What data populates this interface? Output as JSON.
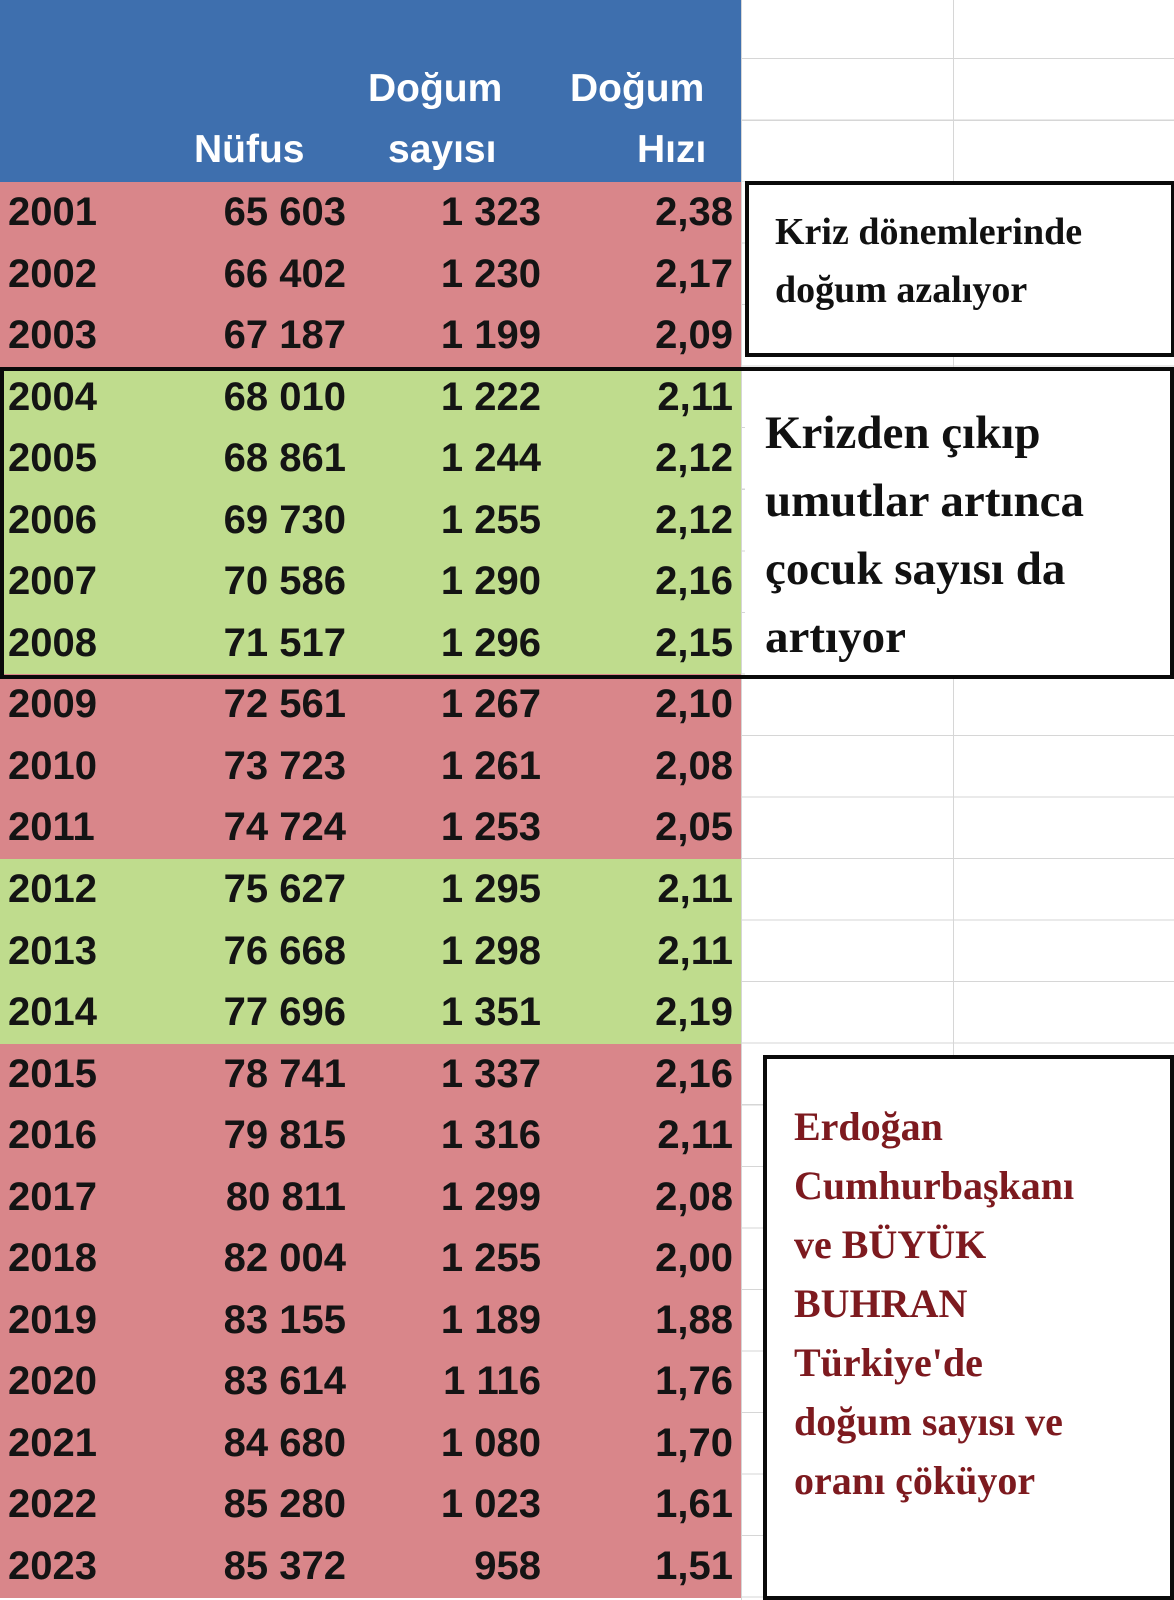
{
  "header": {
    "population": "Nüfus",
    "births_line1": "Doğum",
    "births_line2": "sayısı",
    "rate_line1": "Doğum",
    "rate_line2": "Hızı"
  },
  "colors": {
    "header": "#3e6fae",
    "decline_row": "#d9868a",
    "growth_row": "#bfdc8d",
    "note_red": "#7d1a1f"
  },
  "rows": [
    {
      "year": "2001",
      "population": "65 603",
      "births": "1 323",
      "rate": "2,38",
      "trend": "decline"
    },
    {
      "year": "2002",
      "population": "66 402",
      "births": "1 230",
      "rate": "2,17",
      "trend": "decline"
    },
    {
      "year": "2003",
      "population": "67 187",
      "births": "1 199",
      "rate": "2,09",
      "trend": "decline"
    },
    {
      "year": "2004",
      "population": "68 010",
      "births": "1 222",
      "rate": "2,11",
      "trend": "growth"
    },
    {
      "year": "2005",
      "population": "68 861",
      "births": "1 244",
      "rate": "2,12",
      "trend": "growth"
    },
    {
      "year": "2006",
      "population": "69 730",
      "births": "1 255",
      "rate": "2,12",
      "trend": "growth"
    },
    {
      "year": "2007",
      "population": "70 586",
      "births": "1 290",
      "rate": "2,16",
      "trend": "growth"
    },
    {
      "year": "2008",
      "population": "71 517",
      "births": "1 296",
      "rate": "2,15",
      "trend": "growth"
    },
    {
      "year": "2009",
      "population": "72 561",
      "births": "1 267",
      "rate": "2,10",
      "trend": "decline"
    },
    {
      "year": "2010",
      "population": "73 723",
      "births": "1 261",
      "rate": "2,08",
      "trend": "decline"
    },
    {
      "year": "2011",
      "population": "74 724",
      "births": "1 253",
      "rate": "2,05",
      "trend": "decline"
    },
    {
      "year": "2012",
      "population": "75 627",
      "births": "1 295",
      "rate": "2,11",
      "trend": "growth"
    },
    {
      "year": "2013",
      "population": "76 668",
      "births": "1 298",
      "rate": "2,11",
      "trend": "growth"
    },
    {
      "year": "2014",
      "population": "77 696",
      "births": "1 351",
      "rate": "2,19",
      "trend": "growth"
    },
    {
      "year": "2015",
      "population": "78 741",
      "births": "1 337",
      "rate": "2,16",
      "trend": "decline"
    },
    {
      "year": "2016",
      "population": "79 815",
      "births": "1 316",
      "rate": "2,11",
      "trend": "decline"
    },
    {
      "year": "2017",
      "population": "80 811",
      "births": "1 299",
      "rate": "2,08",
      "trend": "decline"
    },
    {
      "year": "2018",
      "population": "82 004",
      "births": "1 255",
      "rate": "2,00",
      "trend": "decline"
    },
    {
      "year": "2019",
      "population": "83 155",
      "births": "1 189",
      "rate": "1,88",
      "trend": "decline"
    },
    {
      "year": "2020",
      "population": "83 614",
      "births": "1 116",
      "rate": "1,76",
      "trend": "decline"
    },
    {
      "year": "2021",
      "population": "84 680",
      "births": "1 080",
      "rate": "1,70",
      "trend": "decline"
    },
    {
      "year": "2022",
      "population": "85 280",
      "births": "1 023",
      "rate": "1,61",
      "trend": "decline"
    },
    {
      "year": "2023",
      "population": "85 372",
      "births": "958",
      "rate": "1,51",
      "trend": "decline"
    }
  ],
  "notes": {
    "crisis": [
      "Kriz dönemlerinde",
      "doğum azalıyor"
    ],
    "recovery": [
      "Krizden çıkıp",
      "umutlar artınca",
      "çocuk sayısı da",
      "artıyor"
    ],
    "collapse": [
      "Erdoğan",
      "Cumhurbaşkanı",
      "ve BÜYÜK",
      "BUHRAN",
      "Türkiye'de",
      "doğum sayısı ve",
      "oranı çöküyor"
    ]
  }
}
